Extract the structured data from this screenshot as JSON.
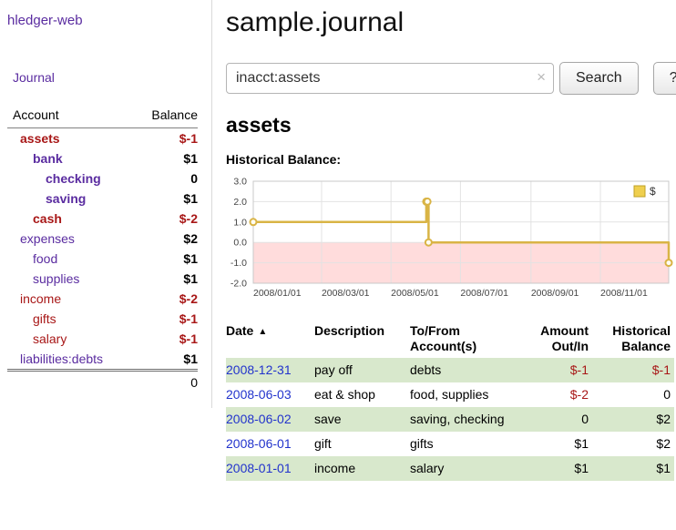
{
  "app": {
    "title": "hledger-web",
    "nav_journal": "Journal"
  },
  "sidebar": {
    "columns": {
      "account": "Account",
      "balance": "Balance"
    },
    "accounts": [
      {
        "name": "assets",
        "indent": 0,
        "balance": "$-1",
        "bold": true,
        "negative": true,
        "balance_negative": true
      },
      {
        "name": "bank",
        "indent": 1,
        "balance": "$1",
        "bold": true,
        "negative": false,
        "balance_negative": false
      },
      {
        "name": "checking",
        "indent": 2,
        "balance": "0",
        "bold": true,
        "negative": false,
        "balance_negative": false
      },
      {
        "name": "saving",
        "indent": 2,
        "balance": "$1",
        "bold": true,
        "negative": false,
        "balance_negative": false
      },
      {
        "name": "cash",
        "indent": 1,
        "balance": "$-2",
        "bold": true,
        "negative": true,
        "balance_negative": true
      },
      {
        "name": "expenses",
        "indent": 0,
        "balance": "$2",
        "bold": false,
        "negative": false,
        "balance_negative": false
      },
      {
        "name": "food",
        "indent": 1,
        "balance": "$1",
        "bold": false,
        "negative": false,
        "balance_negative": false
      },
      {
        "name": "supplies",
        "indent": 1,
        "balance": "$1",
        "bold": false,
        "negative": false,
        "balance_negative": false
      },
      {
        "name": "income",
        "indent": 0,
        "balance": "$-2",
        "bold": false,
        "negative": true,
        "balance_negative": true
      },
      {
        "name": "gifts",
        "indent": 1,
        "balance": "$-1",
        "bold": false,
        "negative": true,
        "balance_negative": true
      },
      {
        "name": "salary",
        "indent": 1,
        "balance": "$-1",
        "bold": false,
        "negative": true,
        "balance_negative": true
      },
      {
        "name": "liabilities:debts",
        "indent": 0,
        "balance": "$1",
        "bold": false,
        "negative": false,
        "balance_negative": false
      }
    ],
    "total": "0"
  },
  "header": {
    "title": "sample.journal"
  },
  "search": {
    "value": "inacct:assets",
    "clear_icon": "×",
    "button_label": "Search",
    "help_label": "?"
  },
  "account_page": {
    "title": "assets",
    "chart_heading": "Historical Balance:"
  },
  "chart_data": {
    "type": "line",
    "style": "step",
    "title": "Historical Balance",
    "series": [
      {
        "name": "$",
        "color": "#d9b445",
        "points": [
          [
            "2008-01-01",
            1
          ],
          [
            "2008-06-01",
            2
          ],
          [
            "2008-06-02",
            2
          ],
          [
            "2008-06-03",
            0
          ],
          [
            "2008-12-31",
            -1
          ]
        ]
      }
    ],
    "x_range": [
      "2008-01-01",
      "2008-12-31"
    ],
    "x_ticks": [
      "2008/01/01",
      "2008/03/01",
      "2008/05/01",
      "2008/07/01",
      "2008/09/01",
      "2008/11/01"
    ],
    "y_ticks": [
      "3.0",
      "2.0",
      "1.0",
      "0.0",
      "-1.0",
      "-2.0"
    ],
    "ylim": [
      -2,
      3
    ],
    "grid": true,
    "legend": {
      "label": "$",
      "position": "top-right",
      "swatch_color": "#efcf4e"
    },
    "negative_region_color": "#ffdcdc"
  },
  "register": {
    "sort_icon": "▲",
    "columns": [
      {
        "label": "Date",
        "align": "left"
      },
      {
        "label": "Description",
        "align": "left"
      },
      {
        "label": "To/From Account(s)",
        "align": "left"
      },
      {
        "label": "Amount Out/In",
        "align": "right"
      },
      {
        "label": "Historical Balance",
        "align": "right"
      }
    ],
    "rows": [
      {
        "date": "2008-12-31",
        "description": "pay off",
        "accounts": "debts",
        "amount": "$-1",
        "amount_negative": true,
        "balance": "$-1",
        "balance_negative": true
      },
      {
        "date": "2008-06-03",
        "description": "eat & shop",
        "accounts": "food, supplies",
        "amount": "$-2",
        "amount_negative": true,
        "balance": "0",
        "balance_negative": false
      },
      {
        "date": "2008-06-02",
        "description": "save",
        "accounts": "saving, checking",
        "amount": "0",
        "amount_negative": false,
        "balance": "$2",
        "balance_negative": false
      },
      {
        "date": "2008-06-01",
        "description": "gift",
        "accounts": "gifts",
        "amount": "$1",
        "amount_negative": false,
        "balance": "$2",
        "balance_negative": false
      },
      {
        "date": "2008-01-01",
        "description": "income",
        "accounts": "salary",
        "amount": "$1",
        "amount_negative": false,
        "balance": "$1",
        "balance_negative": false
      }
    ]
  },
  "colors": {
    "link_purple": "#5a2ca0",
    "negative_red": "#a81717",
    "date_link_blue": "#2233cc",
    "row_stripe_green": "#d8e8cc",
    "chart_line_gold": "#d9b445"
  }
}
